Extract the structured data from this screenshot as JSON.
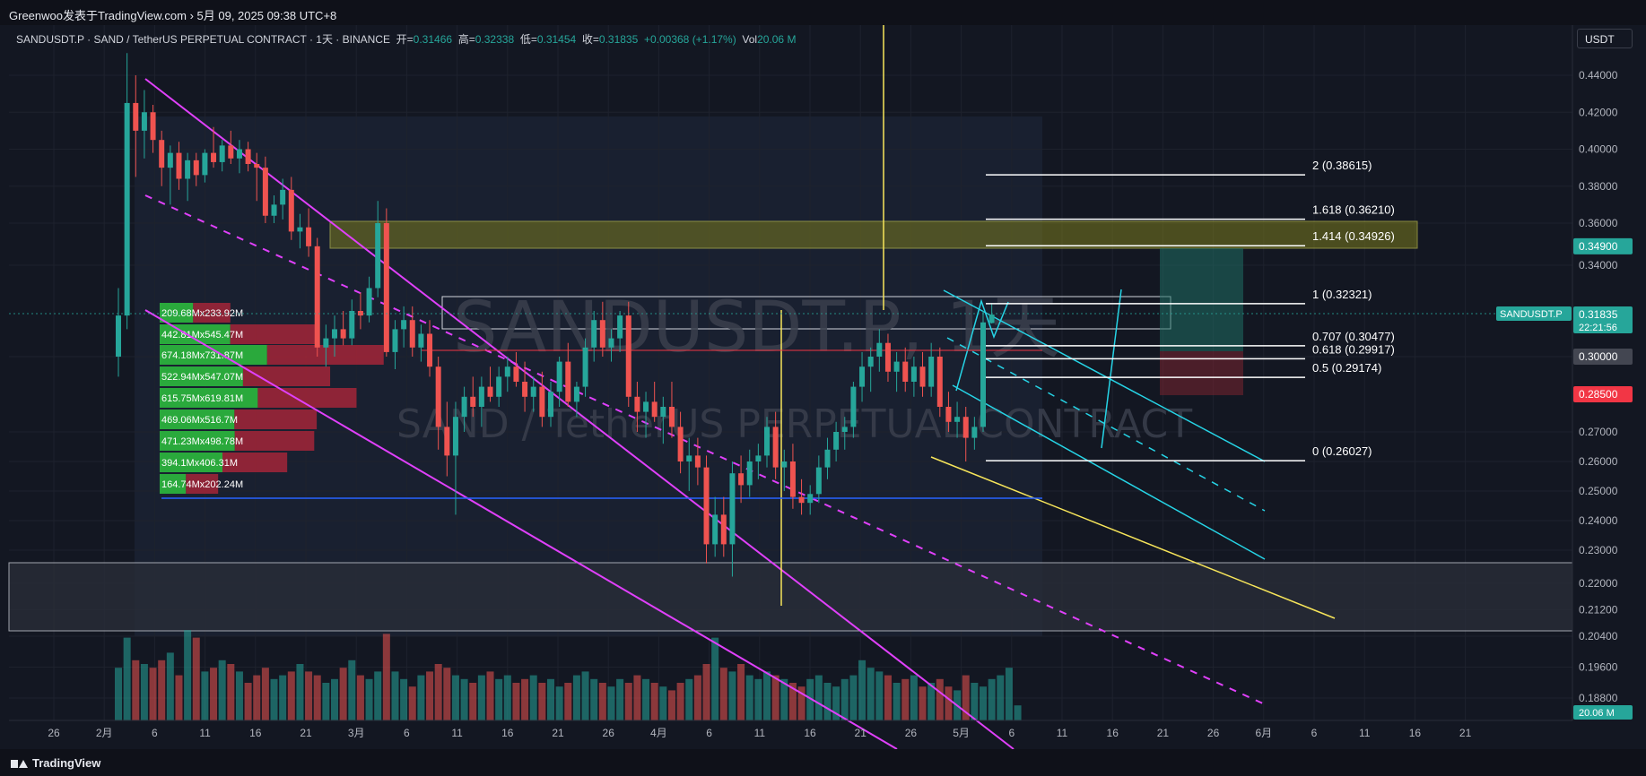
{
  "header": {
    "source_line": "Greenwoo发表于TradingView.com › 5月 09, 2025 09:38 UTC+8"
  },
  "legend": {
    "symbol": "SANDUSDT.P · SAND / TetherUS PERPETUAL CONTRACT · 1天 · BINANCE",
    "open_label": "开=",
    "open_value": "0.31466",
    "high_label": "高=",
    "high_value": "0.32338",
    "low_label": "低=",
    "low_value": "0.31454",
    "close_label": "收=",
    "close_value": "0.31835",
    "change_value": "+0.00368 (+1.17%)",
    "vol_label": "Vol",
    "vol_value": "20.06 M"
  },
  "currency_button": "USDT",
  "watermark": {
    "line1": "SANDUSDT.P, 1天",
    "line2": "SAND / TetherUS PERPETUAL CONTRACT"
  },
  "footer": {
    "brand": "TradingView"
  },
  "chart_data": {
    "type": "candlestick",
    "ylim": [
      0.175,
      0.455
    ],
    "y_ticks": [
      "0.44000",
      "0.42000",
      "0.40000",
      "0.38000",
      "0.36000",
      "0.34000",
      "0.30000",
      "0.27000",
      "0.26000",
      "0.25000",
      "0.24000",
      "0.23000",
      "0.22000",
      "0.21200",
      "0.20400",
      "0.19600",
      "0.18800"
    ],
    "x_ticks": [
      "26",
      "2月",
      "6",
      "11",
      "16",
      "21",
      "3月",
      "6",
      "11",
      "16",
      "21",
      "26",
      "4月",
      "6",
      "11",
      "16",
      "21",
      "26",
      "5月",
      "6",
      "11",
      "16",
      "21",
      "26",
      "6月",
      "6",
      "11",
      "16",
      "21"
    ],
    "price_badges": [
      {
        "label": "SANDUSDT.P",
        "value": "0.31835",
        "countdown": "22:21:56",
        "color": "#26a69a"
      },
      {
        "value": "0.34900",
        "color": "#26a69a"
      },
      {
        "value": "0.30000",
        "color": "#434651"
      },
      {
        "value": "0.28500",
        "color": "#f23645"
      },
      {
        "value": "20.06 M",
        "color": "#26a69a"
      }
    ],
    "fib_levels": [
      {
        "ratio": "2",
        "price": "0.38615"
      },
      {
        "ratio": "1.618",
        "price": "0.36210"
      },
      {
        "ratio": "1.414",
        "price": "0.34926"
      },
      {
        "ratio": "1",
        "price": "0.32321"
      },
      {
        "ratio": "0.707",
        "price": "0.30477"
      },
      {
        "ratio": "0.618",
        "price": "0.29917"
      },
      {
        "ratio": "0.5",
        "price": "0.29174"
      },
      {
        "ratio": "0",
        "price": "0.26027"
      }
    ],
    "volume_profile": [
      {
        "up": "209.68M",
        "down": "233.92M"
      },
      {
        "up": "442.81M",
        "down": "545.47M"
      },
      {
        "up": "674.18M",
        "down": "731.87M"
      },
      {
        "up": "522.94M",
        "down": "547.07M"
      },
      {
        "up": "615.75M",
        "down": "619.81M"
      },
      {
        "up": "469.06M",
        "down": "516.7M"
      },
      {
        "up": "471.23M",
        "down": "498.78M"
      },
      {
        "up": "394.1M",
        "down": "406.31M"
      },
      {
        "up": "164.74M",
        "down": "202.24M"
      }
    ],
    "candles": [
      {
        "o": 0.3,
        "h": 0.33,
        "l": 0.292,
        "c": 0.318
      },
      {
        "o": 0.318,
        "h": 0.452,
        "l": 0.312,
        "c": 0.425
      },
      {
        "o": 0.425,
        "h": 0.44,
        "l": 0.385,
        "c": 0.41
      },
      {
        "o": 0.41,
        "h": 0.432,
        "l": 0.395,
        "c": 0.42
      },
      {
        "o": 0.42,
        "h": 0.424,
        "l": 0.398,
        "c": 0.405
      },
      {
        "o": 0.405,
        "h": 0.41,
        "l": 0.38,
        "c": 0.39
      },
      {
        "o": 0.39,
        "h": 0.402,
        "l": 0.37,
        "c": 0.398
      },
      {
        "o": 0.398,
        "h": 0.404,
        "l": 0.378,
        "c": 0.384
      },
      {
        "o": 0.384,
        "h": 0.398,
        "l": 0.372,
        "c": 0.394
      },
      {
        "o": 0.394,
        "h": 0.398,
        "l": 0.38,
        "c": 0.386
      },
      {
        "o": 0.386,
        "h": 0.4,
        "l": 0.382,
        "c": 0.398
      },
      {
        "o": 0.398,
        "h": 0.412,
        "l": 0.39,
        "c": 0.393
      },
      {
        "o": 0.393,
        "h": 0.405,
        "l": 0.388,
        "c": 0.402
      },
      {
        "o": 0.402,
        "h": 0.41,
        "l": 0.392,
        "c": 0.395
      },
      {
        "o": 0.395,
        "h": 0.405,
        "l": 0.387,
        "c": 0.4
      },
      {
        "o": 0.4,
        "h": 0.404,
        "l": 0.388,
        "c": 0.392
      },
      {
        "o": 0.392,
        "h": 0.398,
        "l": 0.372,
        "c": 0.39
      },
      {
        "o": 0.39,
        "h": 0.396,
        "l": 0.36,
        "c": 0.364
      },
      {
        "o": 0.364,
        "h": 0.375,
        "l": 0.36,
        "c": 0.37
      },
      {
        "o": 0.37,
        "h": 0.384,
        "l": 0.362,
        "c": 0.378
      },
      {
        "o": 0.378,
        "h": 0.385,
        "l": 0.352,
        "c": 0.356
      },
      {
        "o": 0.356,
        "h": 0.365,
        "l": 0.348,
        "c": 0.358
      },
      {
        "o": 0.358,
        "h": 0.368,
        "l": 0.344,
        "c": 0.349
      },
      {
        "o": 0.349,
        "h": 0.353,
        "l": 0.3,
        "c": 0.304
      },
      {
        "o": 0.304,
        "h": 0.314,
        "l": 0.296,
        "c": 0.308
      },
      {
        "o": 0.308,
        "h": 0.318,
        "l": 0.3,
        "c": 0.312
      },
      {
        "o": 0.312,
        "h": 0.32,
        "l": 0.305,
        "c": 0.308
      },
      {
        "o": 0.308,
        "h": 0.325,
        "l": 0.305,
        "c": 0.32
      },
      {
        "o": 0.32,
        "h": 0.328,
        "l": 0.312,
        "c": 0.318
      },
      {
        "o": 0.318,
        "h": 0.335,
        "l": 0.315,
        "c": 0.33
      },
      {
        "o": 0.33,
        "h": 0.372,
        "l": 0.326,
        "c": 0.36
      },
      {
        "o": 0.36,
        "h": 0.368,
        "l": 0.3,
        "c": 0.302
      },
      {
        "o": 0.302,
        "h": 0.316,
        "l": 0.295,
        "c": 0.312
      },
      {
        "o": 0.312,
        "h": 0.322,
        "l": 0.304,
        "c": 0.316
      },
      {
        "o": 0.316,
        "h": 0.322,
        "l": 0.3,
        "c": 0.304
      },
      {
        "o": 0.304,
        "h": 0.314,
        "l": 0.298,
        "c": 0.31
      },
      {
        "o": 0.31,
        "h": 0.316,
        "l": 0.292,
        "c": 0.296
      },
      {
        "o": 0.296,
        "h": 0.3,
        "l": 0.264,
        "c": 0.272
      },
      {
        "o": 0.272,
        "h": 0.282,
        "l": 0.255,
        "c": 0.262
      },
      {
        "o": 0.262,
        "h": 0.282,
        "l": 0.242,
        "c": 0.276
      },
      {
        "o": 0.276,
        "h": 0.288,
        "l": 0.27,
        "c": 0.284
      },
      {
        "o": 0.284,
        "h": 0.292,
        "l": 0.276,
        "c": 0.28
      },
      {
        "o": 0.28,
        "h": 0.292,
        "l": 0.272,
        "c": 0.288
      },
      {
        "o": 0.288,
        "h": 0.296,
        "l": 0.282,
        "c": 0.284
      },
      {
        "o": 0.284,
        "h": 0.296,
        "l": 0.28,
        "c": 0.292
      },
      {
        "o": 0.292,
        "h": 0.3,
        "l": 0.286,
        "c": 0.296
      },
      {
        "o": 0.296,
        "h": 0.302,
        "l": 0.288,
        "c": 0.29
      },
      {
        "o": 0.29,
        "h": 0.298,
        "l": 0.278,
        "c": 0.284
      },
      {
        "o": 0.284,
        "h": 0.292,
        "l": 0.278,
        "c": 0.288
      },
      {
        "o": 0.288,
        "h": 0.294,
        "l": 0.272,
        "c": 0.276
      },
      {
        "o": 0.276,
        "h": 0.29,
        "l": 0.272,
        "c": 0.286
      },
      {
        "o": 0.286,
        "h": 0.3,
        "l": 0.28,
        "c": 0.298
      },
      {
        "o": 0.298,
        "h": 0.306,
        "l": 0.28,
        "c": 0.282
      },
      {
        "o": 0.282,
        "h": 0.29,
        "l": 0.276,
        "c": 0.288
      },
      {
        "o": 0.288,
        "h": 0.308,
        "l": 0.284,
        "c": 0.304
      },
      {
        "o": 0.304,
        "h": 0.32,
        "l": 0.298,
        "c": 0.316
      },
      {
        "o": 0.316,
        "h": 0.324,
        "l": 0.3,
        "c": 0.304
      },
      {
        "o": 0.304,
        "h": 0.312,
        "l": 0.298,
        "c": 0.308
      },
      {
        "o": 0.308,
        "h": 0.32,
        "l": 0.302,
        "c": 0.318
      },
      {
        "o": 0.318,
        "h": 0.324,
        "l": 0.28,
        "c": 0.284
      },
      {
        "o": 0.284,
        "h": 0.29,
        "l": 0.27,
        "c": 0.278
      },
      {
        "o": 0.278,
        "h": 0.286,
        "l": 0.268,
        "c": 0.282
      },
      {
        "o": 0.282,
        "h": 0.29,
        "l": 0.274,
        "c": 0.276
      },
      {
        "o": 0.276,
        "h": 0.284,
        "l": 0.266,
        "c": 0.28
      },
      {
        "o": 0.28,
        "h": 0.29,
        "l": 0.268,
        "c": 0.272
      },
      {
        "o": 0.272,
        "h": 0.278,
        "l": 0.256,
        "c": 0.26
      },
      {
        "o": 0.26,
        "h": 0.268,
        "l": 0.25,
        "c": 0.262
      },
      {
        "o": 0.262,
        "h": 0.268,
        "l": 0.252,
        "c": 0.258
      },
      {
        "o": 0.258,
        "h": 0.262,
        "l": 0.226,
        "c": 0.232
      },
      {
        "o": 0.232,
        "h": 0.248,
        "l": 0.228,
        "c": 0.242
      },
      {
        "o": 0.242,
        "h": 0.248,
        "l": 0.228,
        "c": 0.232
      },
      {
        "o": 0.232,
        "h": 0.26,
        "l": 0.222,
        "c": 0.256
      },
      {
        "o": 0.256,
        "h": 0.262,
        "l": 0.246,
        "c": 0.252
      },
      {
        "o": 0.252,
        "h": 0.264,
        "l": 0.248,
        "c": 0.26
      },
      {
        "o": 0.26,
        "h": 0.266,
        "l": 0.254,
        "c": 0.262
      },
      {
        "o": 0.262,
        "h": 0.276,
        "l": 0.258,
        "c": 0.272
      },
      {
        "o": 0.272,
        "h": 0.278,
        "l": 0.254,
        "c": 0.258
      },
      {
        "o": 0.258,
        "h": 0.264,
        "l": 0.25,
        "c": 0.26
      },
      {
        "o": 0.26,
        "h": 0.266,
        "l": 0.244,
        "c": 0.248
      },
      {
        "o": 0.248,
        "h": 0.254,
        "l": 0.242,
        "c": 0.246
      },
      {
        "o": 0.246,
        "h": 0.252,
        "l": 0.242,
        "c": 0.249
      },
      {
        "o": 0.249,
        "h": 0.262,
        "l": 0.246,
        "c": 0.258
      },
      {
        "o": 0.258,
        "h": 0.268,
        "l": 0.254,
        "c": 0.264
      },
      {
        "o": 0.264,
        "h": 0.274,
        "l": 0.26,
        "c": 0.27
      },
      {
        "o": 0.27,
        "h": 0.276,
        "l": 0.264,
        "c": 0.272
      },
      {
        "o": 0.272,
        "h": 0.29,
        "l": 0.268,
        "c": 0.288
      },
      {
        "o": 0.288,
        "h": 0.302,
        "l": 0.282,
        "c": 0.296
      },
      {
        "o": 0.296,
        "h": 0.304,
        "l": 0.286,
        "c": 0.3
      },
      {
        "o": 0.3,
        "h": 0.312,
        "l": 0.294,
        "c": 0.306
      },
      {
        "o": 0.306,
        "h": 0.31,
        "l": 0.29,
        "c": 0.294
      },
      {
        "o": 0.294,
        "h": 0.302,
        "l": 0.286,
        "c": 0.298
      },
      {
        "o": 0.298,
        "h": 0.304,
        "l": 0.286,
        "c": 0.29
      },
      {
        "o": 0.29,
        "h": 0.3,
        "l": 0.284,
        "c": 0.296
      },
      {
        "o": 0.296,
        "h": 0.302,
        "l": 0.284,
        "c": 0.288
      },
      {
        "o": 0.288,
        "h": 0.306,
        "l": 0.284,
        "c": 0.3
      },
      {
        "o": 0.3,
        "h": 0.304,
        "l": 0.276,
        "c": 0.28
      },
      {
        "o": 0.28,
        "h": 0.286,
        "l": 0.27,
        "c": 0.274
      },
      {
        "o": 0.274,
        "h": 0.282,
        "l": 0.268,
        "c": 0.276
      },
      {
        "o": 0.276,
        "h": 0.28,
        "l": 0.26,
        "c": 0.268
      },
      {
        "o": 0.268,
        "h": 0.276,
        "l": 0.264,
        "c": 0.272
      },
      {
        "o": 0.272,
        "h": 0.32,
        "l": 0.27,
        "c": 0.315
      },
      {
        "o": 0.3147,
        "h": 0.3234,
        "l": 0.3145,
        "c": 0.3184
      }
    ],
    "volumes": [
      14,
      22,
      16,
      15,
      14,
      16,
      18,
      12,
      24,
      22,
      13,
      14,
      16,
      15,
      13,
      10,
      12,
      14,
      11,
      12,
      13,
      15,
      13,
      12,
      10,
      11,
      14,
      16,
      12,
      11,
      13,
      23,
      13,
      11,
      9,
      12,
      13,
      15,
      14,
      12,
      11,
      10,
      12,
      13,
      11,
      12,
      10,
      11,
      12,
      10,
      11,
      9,
      10,
      12,
      13,
      11,
      10,
      9,
      11,
      10,
      12,
      11,
      10,
      9,
      8,
      10,
      11,
      12,
      15,
      22,
      14,
      13,
      15,
      12,
      11,
      13,
      12,
      11,
      10,
      9,
      11,
      12,
      10,
      9,
      11,
      12,
      16,
      14,
      13,
      12,
      10,
      11,
      12,
      9,
      10,
      11,
      9,
      8,
      12,
      10,
      9,
      11,
      12,
      14,
      4
    ]
  }
}
